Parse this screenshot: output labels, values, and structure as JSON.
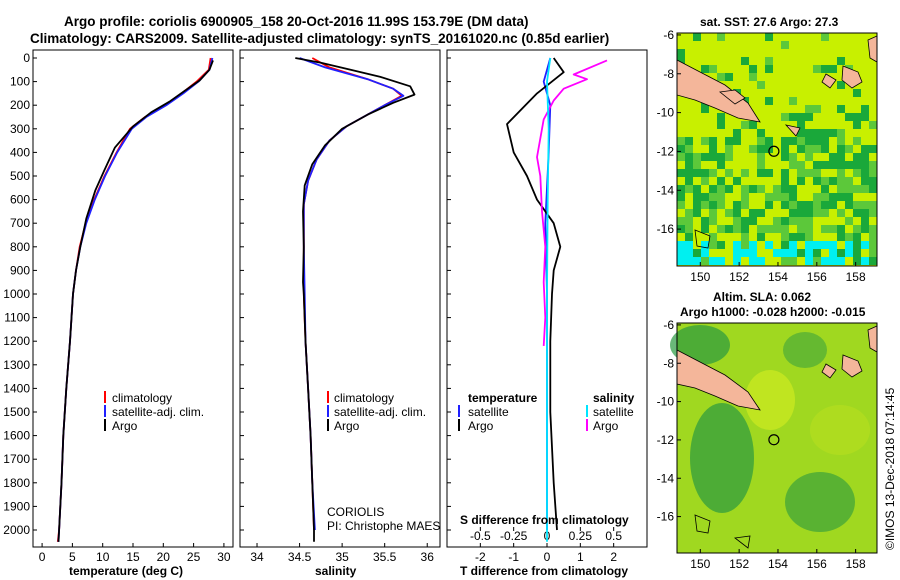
{
  "header": {
    "title_line1": "Argo profile: coriolis 6900905_158 20-Oct-2016 11.99S 153.79E (DM data)",
    "title_line2": "Climatology: CARS2009. Satellite-adjusted climatology: synTS_20161020.nc (0.85d earlier)"
  },
  "credits": {
    "agency": "CORIOLIS",
    "pi": "PI: Christophe MAES",
    "stamp": "©IMOS 13-Dec-2018 07:14:45"
  },
  "colors": {
    "climatology": "#ff0000",
    "satellite": "#2020ff",
    "argo": "#000000",
    "s_argo": "#ff00ff",
    "s_satellite": "#00e5ff",
    "land": "#f4b69a",
    "sst_base": "#c8f000",
    "sst_dark": "#1aa83a",
    "sst_cyan": "#00f0f0",
    "sla_base": "#a0d820",
    "sla_dark": "#2a9a40"
  },
  "chart_data": [
    {
      "type": "line",
      "panel": "temperature",
      "xlabel": "temperature (deg C)",
      "ylabel": "",
      "xlim": [
        -1.5,
        31.5
      ],
      "ylim": [
        2080,
        0
      ],
      "xticks": [
        0,
        5,
        10,
        15,
        20,
        25,
        30
      ],
      "yticks": [
        0,
        100,
        200,
        300,
        400,
        500,
        600,
        700,
        800,
        900,
        1000,
        1100,
        1200,
        1300,
        1400,
        1500,
        1600,
        1700,
        1800,
        1900,
        2000
      ],
      "legend": [
        "climatology",
        "satellite-adj. clim.",
        "Argo"
      ],
      "legend_position": "lower-right",
      "series": [
        {
          "name": "climatology",
          "color": "#ff0000",
          "points": [
            [
              27.8,
              0
            ],
            [
              27.5,
              50
            ],
            [
              25.5,
              100
            ],
            [
              23,
              150
            ],
            [
              20.3,
              200
            ],
            [
              17,
              250
            ],
            [
              14.5,
              300
            ],
            [
              12.3,
              400
            ],
            [
              10.3,
              500
            ],
            [
              8.6,
              600
            ],
            [
              7.2,
              700
            ],
            [
              6.2,
              800
            ],
            [
              5.6,
              900
            ],
            [
              5.1,
              1000
            ],
            [
              4.6,
              1200
            ],
            [
              4.0,
              1400
            ],
            [
              3.5,
              1600
            ],
            [
              3.2,
              1800
            ],
            [
              2.8,
              2000
            ],
            [
              2.6,
              2050
            ]
          ]
        },
        {
          "name": "satellite-adj. clim.",
          "color": "#2020ff",
          "points": [
            [
              28.1,
              0
            ],
            [
              27.6,
              50
            ],
            [
              25.8,
              100
            ],
            [
              23.3,
              150
            ],
            [
              20.5,
              200
            ],
            [
              17.2,
              250
            ],
            [
              14.8,
              300
            ],
            [
              12.4,
              400
            ],
            [
              10.4,
              500
            ],
            [
              8.7,
              600
            ],
            [
              7.3,
              700
            ],
            [
              6.3,
              800
            ],
            [
              5.6,
              900
            ],
            [
              5.1,
              1000
            ],
            [
              4.6,
              1200
            ],
            [
              4.0,
              1400
            ],
            [
              3.5,
              1600
            ],
            [
              3.2,
              1800
            ],
            [
              2.8,
              2000
            ],
            [
              2.7,
              2050
            ]
          ]
        },
        {
          "name": "Argo",
          "color": "#000000",
          "points": [
            [
              28.2,
              10
            ],
            [
              27.6,
              50
            ],
            [
              26,
              95
            ],
            [
              23.5,
              140
            ],
            [
              21,
              185
            ],
            [
              18,
              230
            ],
            [
              15,
              290
            ],
            [
              12.0,
              380
            ],
            [
              10.2,
              480
            ],
            [
              8.8,
              560
            ],
            [
              7.3,
              680
            ],
            [
              6.3,
              800
            ],
            [
              5.6,
              900
            ],
            [
              5.1,
              1000
            ],
            [
              4.6,
              1200
            ],
            [
              4.0,
              1400
            ],
            [
              3.5,
              1600
            ],
            [
              3.2,
              1800
            ],
            [
              2.8,
              2000
            ],
            [
              2.7,
              2050
            ]
          ]
        }
      ]
    },
    {
      "type": "line",
      "panel": "salinity",
      "xlabel": "salinity",
      "ylabel": "",
      "xlim": [
        33.8,
        36.15
      ],
      "ylim": [
        2080,
        0
      ],
      "xticks": [
        34,
        34.5,
        35,
        35.5,
        36
      ],
      "legend": [
        "climatology",
        "satellite-adj. clim.",
        "Argo"
      ],
      "legend_position": "lower-right",
      "series": [
        {
          "name": "climatology",
          "color": "#ff0000",
          "points": [
            [
              34.65,
              0
            ],
            [
              34.85,
              40
            ],
            [
              35.3,
              90
            ],
            [
              35.6,
              130
            ],
            [
              35.7,
              160
            ],
            [
              35.5,
              200
            ],
            [
              35.3,
              240
            ],
            [
              35.05,
              290
            ],
            [
              34.85,
              350
            ],
            [
              34.7,
              430
            ],
            [
              34.6,
              520
            ],
            [
              34.55,
              620
            ],
            [
              34.55,
              800
            ],
            [
              34.55,
              1000
            ],
            [
              34.57,
              1200
            ],
            [
              34.6,
              1400
            ],
            [
              34.63,
              1600
            ],
            [
              34.65,
              1800
            ],
            [
              34.67,
              2000
            ]
          ]
        },
        {
          "name": "satellite-adj. clim.",
          "color": "#2020ff",
          "points": [
            [
              34.5,
              0
            ],
            [
              34.8,
              40
            ],
            [
              35.3,
              90
            ],
            [
              35.6,
              130
            ],
            [
              35.72,
              160
            ],
            [
              35.5,
              200
            ],
            [
              35.3,
              240
            ],
            [
              35.05,
              290
            ],
            [
              34.85,
              350
            ],
            [
              34.7,
              430
            ],
            [
              34.6,
              520
            ],
            [
              34.55,
              620
            ],
            [
              34.55,
              800
            ],
            [
              34.56,
              1000
            ],
            [
              34.57,
              1200
            ],
            [
              34.6,
              1400
            ],
            [
              34.63,
              1600
            ],
            [
              34.65,
              1800
            ],
            [
              34.68,
              2000
            ]
          ]
        },
        {
          "name": "Argo",
          "color": "#000000",
          "points": [
            [
              34.45,
              0
            ],
            [
              34.75,
              20
            ],
            [
              35.1,
              50
            ],
            [
              35.45,
              80
            ],
            [
              35.8,
              120
            ],
            [
              35.85,
              155
            ],
            [
              35.6,
              190
            ],
            [
              35.3,
              240
            ],
            [
              35.0,
              300
            ],
            [
              34.8,
              370
            ],
            [
              34.65,
              450
            ],
            [
              34.56,
              540
            ],
            [
              34.54,
              650
            ],
            [
              34.55,
              800
            ],
            [
              34.54,
              950
            ],
            [
              34.55,
              1000
            ],
            [
              34.57,
              1200
            ],
            [
              34.6,
              1400
            ],
            [
              34.63,
              1600
            ],
            [
              34.65,
              1800
            ],
            [
              34.67,
              2000
            ],
            [
              34.67,
              2050
            ]
          ]
        }
      ]
    },
    {
      "type": "line",
      "panel": "differences",
      "xlabel": "T difference from climatology",
      "top_axis_label": "S difference from climatology",
      "xlim": [
        -3,
        3
      ],
      "xticks": [
        -2,
        -1,
        0,
        1,
        2
      ],
      "top_xticks": [
        "-0.5",
        "-0.25",
        "0",
        "0.25",
        "0.5"
      ],
      "legend_temperature": {
        "heading": "temperature",
        "items": [
          "satellite",
          "Argo"
        ]
      },
      "legend_salinity": {
        "heading": "salinity",
        "items": [
          "satellite",
          "Argo"
        ]
      },
      "series": [
        {
          "name": "T satellite",
          "color": "#2020ff",
          "points": [
            [
              0.1,
              0
            ],
            [
              -0.1,
              100
            ],
            [
              0.1,
              200
            ],
            [
              0.05,
              400
            ],
            [
              -0.05,
              700
            ],
            [
              0.0,
              1000
            ],
            [
              0.0,
              1500
            ],
            [
              0.0,
              2000
            ]
          ]
        },
        {
          "name": "T Argo",
          "color": "#000000",
          "points": [
            [
              0.2,
              0
            ],
            [
              0.5,
              60
            ],
            [
              -0.3,
              150
            ],
            [
              -1.2,
              280
            ],
            [
              -1.0,
              400
            ],
            [
              -0.6,
              500
            ],
            [
              -0.3,
              600
            ],
            [
              0.2,
              700
            ],
            [
              0.4,
              800
            ],
            [
              0.2,
              900
            ],
            [
              0.15,
              1000
            ],
            [
              0.1,
              1200
            ],
            [
              0.1,
              1500
            ],
            [
              0.2,
              1800
            ],
            [
              0.3,
              2000
            ]
          ]
        },
        {
          "name": "S Argo",
          "color": "#ff00ff",
          "points": [
            [
              1.8,
              10
            ],
            [
              0.8,
              70
            ],
            [
              1.2,
              90
            ],
            [
              0.5,
              130
            ],
            [
              0.2,
              180
            ],
            [
              -0.1,
              260
            ],
            [
              -0.3,
              420
            ],
            [
              -0.2,
              500
            ],
            [
              -0.15,
              650
            ],
            [
              -0.05,
              800
            ],
            [
              -0.1,
              950
            ],
            [
              -0.05,
              1100
            ],
            [
              -0.1,
              1220
            ]
          ]
        },
        {
          "name": "S satellite",
          "color": "#00e5ff",
          "points": [
            [
              0.1,
              0
            ],
            [
              0.0,
              100
            ],
            [
              0.05,
              300
            ],
            [
              0.02,
              600
            ],
            [
              0.0,
              1000
            ],
            [
              0.0,
              1500
            ],
            [
              0.0,
              2050
            ]
          ]
        }
      ]
    }
  ],
  "maps": [
    {
      "title_line1": "sat. SST: 27.6 Argo: 27.3",
      "title_line2": "",
      "xticks": [
        "150",
        "152",
        "154",
        "156",
        "158"
      ],
      "yticks": [
        "-6",
        "-8",
        "-10",
        "-12",
        "-14",
        "-16"
      ],
      "marker": {
        "lon": 153.79,
        "lat": -11.99
      }
    },
    {
      "title_line1": "Altim. SLA: 0.062",
      "title_line2": "Argo h1000: -0.028 h2000: -0.015",
      "xticks": [
        "150",
        "152",
        "154",
        "156",
        "158"
      ],
      "yticks": [
        "-6",
        "-8",
        "-10",
        "-12",
        "-14",
        "-16"
      ],
      "marker": {
        "lon": 153.79,
        "lat": -11.99
      }
    }
  ]
}
